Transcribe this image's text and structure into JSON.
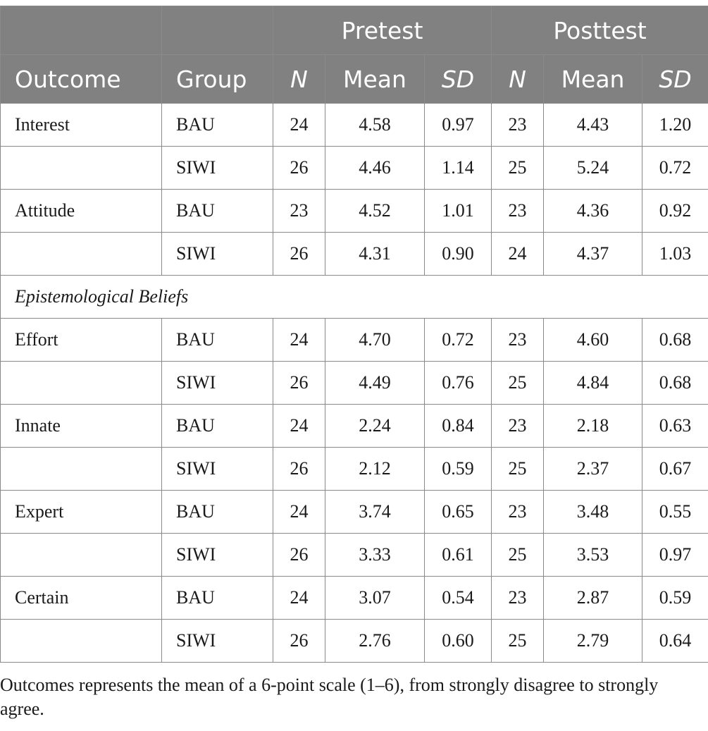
{
  "header": {
    "pretest": "Pretest",
    "posttest": "Posttest",
    "outcome": "Outcome",
    "group": "Group",
    "n": "N",
    "mean": "Mean",
    "sd": "SD"
  },
  "rows": [
    {
      "outcome": "Interest",
      "group": "BAU",
      "pre_n": "24",
      "pre_mean": "4.58",
      "pre_sd": "0.97",
      "post_n": "23",
      "post_mean": "4.43",
      "post_sd": "1.20"
    },
    {
      "outcome": "",
      "group": "SIWI",
      "pre_n": "26",
      "pre_mean": "4.46",
      "pre_sd": "1.14",
      "post_n": "25",
      "post_mean": "5.24",
      "post_sd": "0.72"
    },
    {
      "outcome": "Attitude",
      "group": "BAU",
      "pre_n": "23",
      "pre_mean": "4.52",
      "pre_sd": "1.01",
      "post_n": "23",
      "post_mean": "4.36",
      "post_sd": "0.92"
    },
    {
      "outcome": "",
      "group": "SIWI",
      "pre_n": "26",
      "pre_mean": "4.31",
      "pre_sd": "0.90",
      "post_n": "24",
      "post_mean": "4.37",
      "post_sd": "1.03"
    }
  ],
  "section_label": "Epistemological Beliefs",
  "rows2": [
    {
      "outcome": "Effort",
      "group": "BAU",
      "pre_n": "24",
      "pre_mean": "4.70",
      "pre_sd": "0.72",
      "post_n": "23",
      "post_mean": "4.60",
      "post_sd": "0.68"
    },
    {
      "outcome": "",
      "group": "SIWI",
      "pre_n": "26",
      "pre_mean": "4.49",
      "pre_sd": "0.76",
      "post_n": "25",
      "post_mean": "4.84",
      "post_sd": "0.68"
    },
    {
      "outcome": "Innate",
      "group": "BAU",
      "pre_n": "24",
      "pre_mean": "2.24",
      "pre_sd": "0.84",
      "post_n": "23",
      "post_mean": "2.18",
      "post_sd": "0.63"
    },
    {
      "outcome": "",
      "group": "SIWI",
      "pre_n": "26",
      "pre_mean": "2.12",
      "pre_sd": "0.59",
      "post_n": "25",
      "post_mean": "2.37",
      "post_sd": "0.67"
    },
    {
      "outcome": "Expert",
      "group": "BAU",
      "pre_n": "24",
      "pre_mean": "3.74",
      "pre_sd": "0.65",
      "post_n": "23",
      "post_mean": "3.48",
      "post_sd": "0.55"
    },
    {
      "outcome": "",
      "group": "SIWI",
      "pre_n": "26",
      "pre_mean": "3.33",
      "pre_sd": "0.61",
      "post_n": "25",
      "post_mean": "3.53",
      "post_sd": "0.97"
    },
    {
      "outcome": "Certain",
      "group": "BAU",
      "pre_n": "24",
      "pre_mean": "3.07",
      "pre_sd": "0.54",
      "post_n": "23",
      "post_mean": "2.87",
      "post_sd": "0.59"
    },
    {
      "outcome": "",
      "group": "SIWI",
      "pre_n": "26",
      "pre_mean": "2.76",
      "pre_sd": "0.60",
      "post_n": "25",
      "post_mean": "2.79",
      "post_sd": "0.64"
    }
  ],
  "note": "Outcomes represents the mean of a 6-point scale (1–6), from strongly disagree to strongly agree.",
  "colors": {
    "header_bg": "#818181",
    "header_text": "#ffffff",
    "border": "#8a8a8a"
  }
}
